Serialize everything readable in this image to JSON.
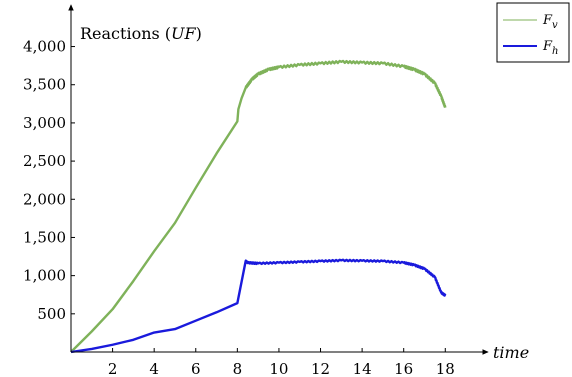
{
  "chart_data": {
    "type": "line",
    "ylabel": "Reactions (UF)",
    "xlabel": "time",
    "xlim": [
      0,
      18.9
    ],
    "ylim": [
      0,
      4400
    ],
    "xticks": [
      2,
      4,
      6,
      8,
      10,
      12,
      14,
      16,
      18
    ],
    "xtick_labels": [
      "2",
      "4",
      "6",
      "8",
      "10",
      "12",
      "14",
      "16",
      "18"
    ],
    "yticks": [
      500,
      1000,
      1500,
      2000,
      2500,
      3000,
      3500,
      4000
    ],
    "ytick_labels": [
      "500",
      "1,000",
      "1,500",
      "2,000",
      "2,500",
      "3,000",
      "3,500",
      "4,000"
    ],
    "legend_position": "top-right",
    "series": [
      {
        "name": "F_v",
        "color": "#7fb25a",
        "x": [
          0,
          1,
          2,
          3,
          4,
          5,
          6,
          7,
          8,
          8.05,
          8.2,
          8.4,
          8.7,
          9,
          9.5,
          10,
          11,
          12,
          13,
          14,
          15,
          16,
          16.5,
          17,
          17.5,
          17.8,
          18
        ],
        "y": [
          0,
          270,
          560,
          930,
          1320,
          1690,
          2150,
          2600,
          3020,
          3180,
          3320,
          3460,
          3570,
          3640,
          3700,
          3730,
          3760,
          3780,
          3800,
          3790,
          3780,
          3740,
          3700,
          3640,
          3520,
          3350,
          3200
        ]
      },
      {
        "name": "F_h",
        "color": "#1a1adc",
        "x": [
          0,
          1,
          2,
          3,
          4,
          5,
          6,
          7,
          8,
          8.4,
          8.5,
          9,
          10,
          11,
          12,
          13,
          14,
          15,
          16,
          16.5,
          17,
          17.5,
          17.8,
          18
        ],
        "y": [
          0,
          40,
          95,
          160,
          255,
          300,
          410,
          520,
          640,
          1190,
          1170,
          1160,
          1170,
          1180,
          1190,
          1200,
          1195,
          1190,
          1170,
          1140,
          1090,
          980,
          780,
          740
        ]
      }
    ]
  }
}
